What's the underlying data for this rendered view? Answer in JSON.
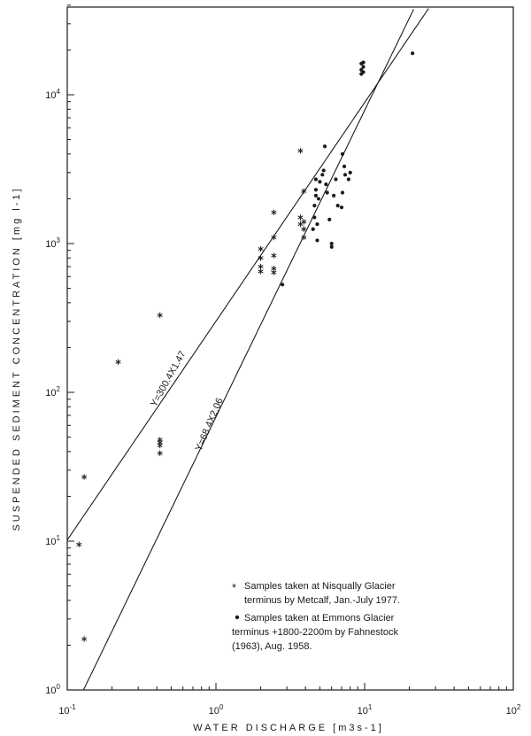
{
  "chart_data": {
    "type": "scatter",
    "xlabel": "WATER DISCHARGE [m3s-1]",
    "ylabel": "SUSPENDED SEDIMENT CONCENTRATION [mg l-1]",
    "x_scale": "log",
    "y_scale": "log",
    "xlim": [
      0.1,
      100
    ],
    "ylim": [
      1,
      40000
    ],
    "x_ticks": [
      {
        "value": 0.1,
        "base": "10",
        "exp": "-1"
      },
      {
        "value": 1,
        "base": "10",
        "exp": "0"
      },
      {
        "value": 10,
        "base": "10",
        "exp": "1"
      },
      {
        "value": 100,
        "base": "10",
        "exp": "2"
      }
    ],
    "y_ticks": [
      {
        "value": 1,
        "base": "10",
        "exp": "0"
      },
      {
        "value": 10,
        "base": "10",
        "exp": "1"
      },
      {
        "value": 100,
        "base": "10",
        "exp": "2"
      },
      {
        "value": 1000,
        "base": "10",
        "exp": "3"
      },
      {
        "value": 10000,
        "base": "10",
        "exp": "4"
      }
    ],
    "series": [
      {
        "marker": "asterisk",
        "legend_lines": [
          "Samples taken at Nisqually Glacier",
          "terminus by Metcalf, Jan.-July 1977."
        ],
        "points": [
          [
            0.12,
            9.5
          ],
          [
            0.13,
            2.2
          ],
          [
            0.13,
            27
          ],
          [
            0.22,
            160
          ],
          [
            0.42,
            330
          ],
          [
            0.42,
            39
          ],
          [
            0.42,
            44
          ],
          [
            0.42,
            46
          ],
          [
            0.42,
            48
          ],
          [
            2.0,
            920
          ],
          [
            2.0,
            800
          ],
          [
            2.0,
            700
          ],
          [
            2.0,
            650
          ],
          [
            2.45,
            1620
          ],
          [
            2.45,
            1100
          ],
          [
            2.45,
            830
          ],
          [
            2.45,
            680
          ],
          [
            2.45,
            640
          ],
          [
            3.7,
            4200
          ],
          [
            3.7,
            1500
          ],
          [
            3.7,
            1350
          ],
          [
            3.9,
            2250
          ],
          [
            3.9,
            1400
          ],
          [
            3.9,
            1250
          ],
          [
            3.9,
            1100
          ]
        ]
      },
      {
        "marker": "dot",
        "legend_lines": [
          "Samples taken at Emmons Glacier",
          "terminus +1800-2200m by Fahnestock",
          "(1963), Aug. 1958."
        ],
        "points": [
          [
            2.8,
            530
          ],
          [
            4.5,
            1250
          ],
          [
            4.6,
            1500
          ],
          [
            4.6,
            1800
          ],
          [
            4.7,
            2100
          ],
          [
            4.7,
            2300
          ],
          [
            4.7,
            2700
          ],
          [
            4.8,
            1050
          ],
          [
            4.8,
            1350
          ],
          [
            4.9,
            2000
          ],
          [
            5.0,
            2600
          ],
          [
            5.2,
            2900
          ],
          [
            5.3,
            3100
          ],
          [
            5.4,
            4500
          ],
          [
            5.5,
            2500
          ],
          [
            5.6,
            2200
          ],
          [
            5.8,
            1450
          ],
          [
            6.0,
            950
          ],
          [
            6.0,
            1000
          ],
          [
            6.2,
            2100
          ],
          [
            6.4,
            2700
          ],
          [
            6.6,
            1800
          ],
          [
            7.0,
            1750
          ],
          [
            7.1,
            2200
          ],
          [
            7.3,
            3300
          ],
          [
            7.1,
            4000
          ],
          [
            7.4,
            2900
          ],
          [
            7.8,
            2700
          ],
          [
            8.0,
            3000
          ],
          [
            9.5,
            13800
          ],
          [
            9.5,
            14700
          ],
          [
            9.5,
            16200
          ],
          [
            9.8,
            14200
          ],
          [
            9.8,
            15400
          ],
          [
            9.8,
            16500
          ],
          [
            21,
            19000
          ]
        ]
      }
    ],
    "fit_lines": [
      {
        "label": "Y=300.4X1.47",
        "a": 300.4,
        "b": 1.47
      },
      {
        "label": "Y=68.4X2.06",
        "a": 68.4,
        "b": 2.06
      }
    ]
  }
}
